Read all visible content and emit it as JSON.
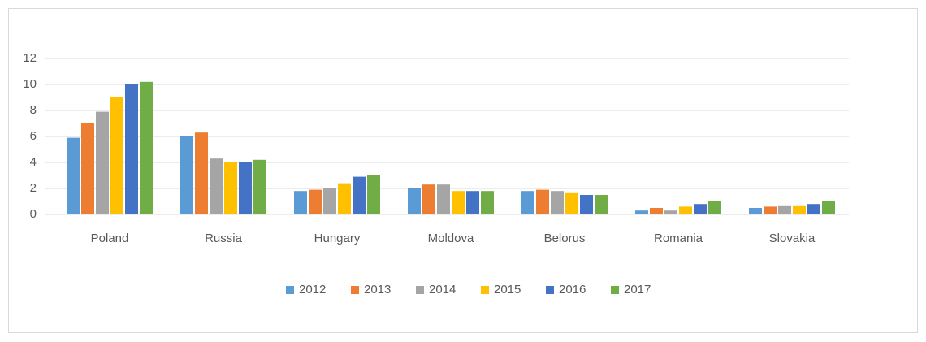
{
  "chart_data": {
    "type": "bar",
    "categories": [
      "Poland",
      "Russia",
      "Hungary",
      "Moldova",
      "Belorus",
      "Romania",
      "Slovakia"
    ],
    "series": [
      {
        "name": "2012",
        "color": "#5b9bd5",
        "values": [
          5.9,
          6.0,
          1.8,
          2.0,
          1.8,
          0.3,
          0.5
        ]
      },
      {
        "name": "2013",
        "color": "#ed7d31",
        "values": [
          7.0,
          6.3,
          1.9,
          2.3,
          1.9,
          0.5,
          0.6
        ]
      },
      {
        "name": "2014",
        "color": "#a5a5a5",
        "values": [
          7.9,
          4.3,
          2.0,
          2.3,
          1.8,
          0.3,
          0.7
        ]
      },
      {
        "name": "2015",
        "color": "#ffc000",
        "values": [
          9.0,
          4.0,
          2.4,
          1.8,
          1.7,
          0.6,
          0.7
        ]
      },
      {
        "name": "2016",
        "color": "#4472c4",
        "values": [
          10.0,
          4.0,
          2.9,
          1.8,
          1.5,
          0.8,
          0.8
        ]
      },
      {
        "name": "2017",
        "color": "#70ad47",
        "values": [
          10.2,
          4.2,
          3.0,
          1.8,
          1.5,
          1.0,
          1.0
        ]
      }
    ],
    "ylim": [
      0,
      12
    ],
    "yticks": [
      0,
      2,
      4,
      6,
      8,
      10,
      12
    ],
    "grid": true,
    "legend": "bottom"
  }
}
